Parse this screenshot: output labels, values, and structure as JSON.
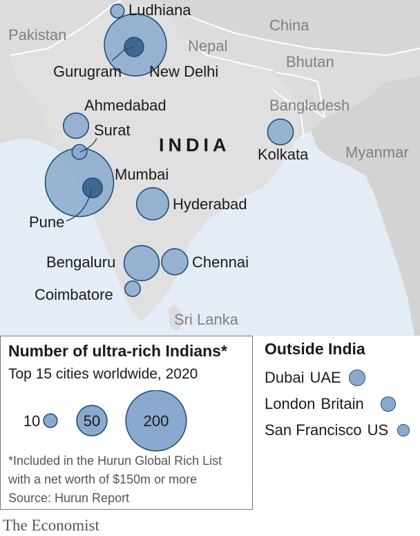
{
  "map": {
    "countries": [
      "Pakistan",
      "China",
      "Nepal",
      "Bhutan",
      "Bangladesh",
      "Myanmar",
      "Sri Lanka"
    ],
    "main_label": "INDIA",
    "cities": [
      {
        "name": "Ludhiana",
        "count": 10
      },
      {
        "name": "New Delhi",
        "count": 210
      },
      {
        "name": "Gurugram",
        "count": 20
      },
      {
        "name": "Ahmedabad",
        "count": 35
      },
      {
        "name": "Surat",
        "count": 12
      },
      {
        "name": "Mumbai",
        "count": 255
      },
      {
        "name": "Pune",
        "count": 21
      },
      {
        "name": "Kolkata",
        "count": 36
      },
      {
        "name": "Hyderabad",
        "count": 56
      },
      {
        "name": "Bengaluru",
        "count": 67
      },
      {
        "name": "Chennai",
        "count": 37
      },
      {
        "name": "Coimbatore",
        "count": 13
      }
    ]
  },
  "legend": {
    "title": "Number of ultra-rich Indians*",
    "subtitle": "Top 15 cities worldwide, 2020",
    "sizes": [
      10,
      50,
      200
    ],
    "note_line1": "*Included in the Hurun Global Rich List",
    "note_line2": "with a net worth of $150m or more",
    "source": "Source: Hurun Report"
  },
  "outside": {
    "title": "Outside India",
    "cities": [
      {
        "city": "Dubai",
        "country": "UAE",
        "count": 15
      },
      {
        "city": "London",
        "country": "Britain",
        "count": 12
      },
      {
        "city": "San Francisco",
        "country": "US",
        "count": 8
      }
    ]
  },
  "colors": {
    "sea": "#e4edf5",
    "land": "#dcdcdc",
    "bubble_fill": "#8aa9cd",
    "bubble_stroke": "#1f4e7a",
    "brand_red": "#e3120b"
  },
  "footer": {
    "brand": "The Economist"
  }
}
